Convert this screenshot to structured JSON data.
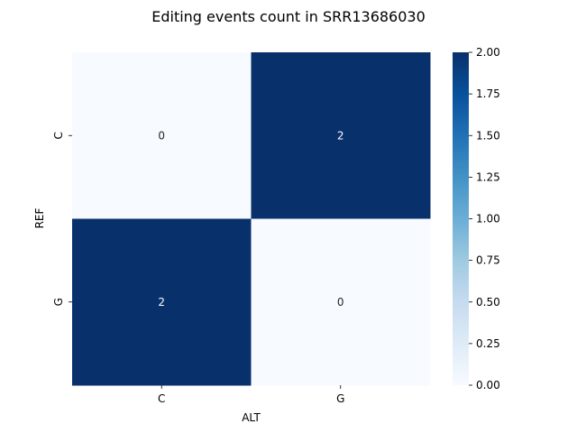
{
  "chart_data": {
    "type": "heatmap",
    "title": "Editing events count in SRR13686030",
    "xlabel": "ALT",
    "ylabel": "REF",
    "x_categories": [
      "C",
      "G"
    ],
    "y_categories": [
      "C",
      "G"
    ],
    "values": [
      [
        0,
        2
      ],
      [
        2,
        0
      ]
    ],
    "value_labels": [
      [
        "0",
        "2"
      ],
      [
        "2",
        "0"
      ]
    ],
    "colorbar": {
      "range": [
        0,
        2
      ],
      "ticks": [
        0,
        0.25,
        0.5,
        0.75,
        1,
        1.25,
        1.5,
        1.75,
        2
      ],
      "tick_labels": [
        "0.00",
        "0.25",
        "0.50",
        "0.75",
        "1.00",
        "1.25",
        "1.50",
        "1.75",
        "2.00"
      ],
      "colormap": "Blues",
      "color_low": "#f7fbff",
      "color_high": "#08306b"
    },
    "grid": false,
    "legend": "colorbar-right"
  }
}
